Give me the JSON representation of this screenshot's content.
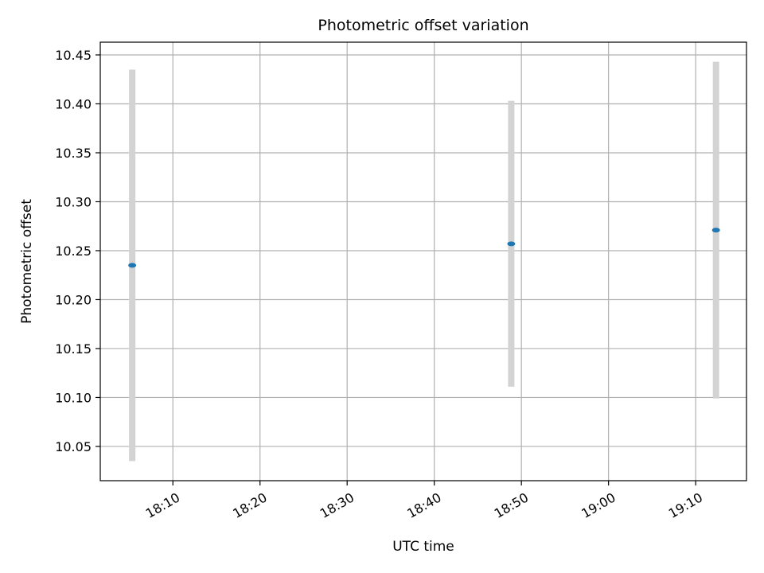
{
  "chart_data": {
    "type": "scatter",
    "title": "Photometric offset variation",
    "xlabel": "UTC time",
    "ylabel": "Photometric offset",
    "x_axis_kind": "time",
    "x_ticks": [
      "18:10",
      "18:20",
      "18:30",
      "18:40",
      "18:50",
      "19:00",
      "19:10"
    ],
    "xlim": [
      "18:01:40",
      "19:15:50"
    ],
    "ylim": [
      10.015,
      10.463
    ],
    "y_ticks": [
      10.05,
      10.1,
      10.15,
      10.2,
      10.25,
      10.3,
      10.35,
      10.4,
      10.45
    ],
    "grid": true,
    "series": [
      {
        "points": [
          {
            "x": "18:05:20",
            "y": 10.235,
            "y_low": 10.035,
            "y_high": 10.435
          },
          {
            "x": "18:48:50",
            "y": 10.257,
            "y_low": 10.111,
            "y_high": 10.403
          },
          {
            "x": "19:12:20",
            "y": 10.271,
            "y_low": 10.099,
            "y_high": 10.443
          }
        ]
      }
    ],
    "colors": {
      "marker": "#1f77b4",
      "errorbar": "#d3d3d3",
      "grid": "#b0b0b0",
      "axis": "#000000"
    }
  }
}
